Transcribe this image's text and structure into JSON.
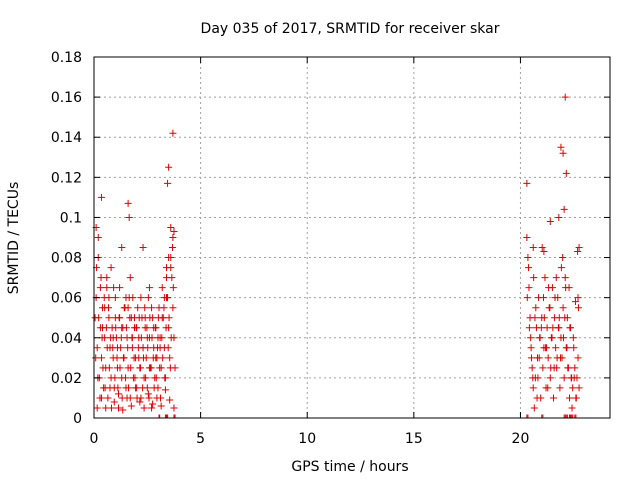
{
  "chart_data": {
    "type": "scatter",
    "title": "Day 035 of 2017, SRMTID for receiver skar",
    "xlabel": "GPS time / hours",
    "ylabel": "SRMTID / TECUs",
    "xlim": [
      0,
      24.2
    ],
    "ylim": [
      0,
      0.18
    ],
    "x_ticks": [
      0,
      5,
      10,
      15,
      20
    ],
    "y_ticks": [
      0,
      0.02,
      0.04,
      0.06,
      0.08,
      0.1,
      0.12,
      0.14,
      0.16,
      0.18
    ],
    "x_tick_labels": [
      "0",
      "5",
      "10",
      "15",
      "20"
    ],
    "y_tick_labels": [
      "0",
      "0.02",
      "0.04",
      "0.06",
      "0.08",
      "0.1",
      "0.12",
      "0.14",
      "0.16",
      "0.18"
    ],
    "grid": true,
    "marker": "+",
    "color": "#e00000",
    "series": [
      {
        "x": [
          0.05,
          0.1,
          0.15,
          0.2,
          0.25,
          0.3,
          0.35,
          0.4,
          0.45,
          0.5,
          0.55,
          0.6,
          0.65,
          0.7,
          0.75,
          0.8,
          0.85,
          0.9,
          0.95,
          1.0,
          1.05,
          1.1,
          1.15,
          1.2,
          1.25,
          1.3,
          1.35,
          1.4,
          1.45,
          1.5,
          1.55,
          1.6,
          1.65,
          1.7,
          1.75,
          1.8,
          1.85,
          1.9,
          1.95,
          2.0,
          2.05,
          2.1,
          2.15,
          2.2,
          2.25,
          2.3,
          2.35,
          2.4,
          2.45,
          2.5,
          2.55,
          2.6,
          2.65,
          2.7,
          2.75,
          2.8,
          2.85,
          2.9,
          2.95,
          3.0,
          3.05,
          3.1,
          3.15,
          3.2,
          3.25,
          3.3,
          3.35,
          3.4,
          3.45,
          3.5,
          3.55,
          3.6,
          3.65,
          3.7,
          3.75,
          3.8,
          0.08,
          0.12,
          0.18,
          0.22,
          0.28,
          0.33,
          0.38,
          0.42,
          0.48,
          0.52,
          0.58,
          0.62,
          0.68,
          0.72,
          0.78,
          0.82,
          0.88,
          0.92,
          0.98,
          1.02,
          1.08,
          1.12,
          1.18,
          1.22,
          1.28,
          1.32,
          1.38,
          1.42,
          1.48,
          1.52,
          1.58,
          1.62,
          1.68,
          1.72,
          1.78,
          1.82,
          1.88,
          1.92,
          1.98,
          2.02,
          2.08,
          2.12,
          2.18,
          2.22,
          2.28,
          2.32,
          2.38,
          2.42,
          2.48,
          2.52,
          2.58,
          2.62,
          2.68,
          2.72,
          2.78,
          2.82,
          2.88,
          2.92,
          2.98,
          3.02,
          3.08,
          3.12,
          3.18,
          3.22,
          3.28,
          3.32,
          3.38,
          3.42,
          3.48,
          3.52,
          3.58,
          3.62,
          3.68,
          3.72,
          0.1,
          0.2,
          0.3,
          0.4,
          0.5,
          0.6,
          0.7,
          0.8,
          0.9,
          1.0,
          1.1,
          1.2,
          1.3,
          1.4,
          1.5,
          1.6,
          1.7,
          1.8,
          1.9,
          2.0,
          2.1,
          2.2,
          2.3,
          2.4,
          2.5,
          2.6,
          2.7,
          2.8,
          2.9,
          3.0,
          3.1,
          3.2,
          3.3,
          3.4,
          3.5,
          3.6,
          3.7,
          0.15,
          0.35,
          0.55,
          0.75,
          0.95,
          1.15,
          1.35,
          1.55,
          1.75,
          1.95,
          2.15,
          2.35,
          2.55,
          2.75,
          2.95,
          3.15,
          3.35,
          3.55,
          3.75,
          0.35,
          1.6,
          1.65,
          3.45,
          3.5,
          3.7,
          1.3,
          2.3,
          2.6,
          3.4,
          3.6,
          3.75,
          20.3,
          20.35,
          20.4,
          20.45,
          20.5,
          20.55,
          20.6,
          20.65,
          20.7,
          20.75,
          20.8,
          20.85,
          20.9,
          20.95,
          21.0,
          21.05,
          21.1,
          21.15,
          21.2,
          21.25,
          21.3,
          21.35,
          21.4,
          21.45,
          21.5,
          21.55,
          21.6,
          21.65,
          21.7,
          21.75,
          21.8,
          21.85,
          21.9,
          21.95,
          22.0,
          22.05,
          22.1,
          22.15,
          22.2,
          22.25,
          22.3,
          22.35,
          22.4,
          22.45,
          22.5,
          22.55,
          22.6,
          22.65,
          22.7,
          22.75,
          20.32,
          20.42,
          20.52,
          20.62,
          20.72,
          20.82,
          20.92,
          21.02,
          21.12,
          21.22,
          21.32,
          21.42,
          21.52,
          21.62,
          21.72,
          21.82,
          21.92,
          22.02,
          22.12,
          22.22,
          22.32,
          22.42,
          22.52,
          22.62,
          22.72,
          20.38,
          20.48,
          20.58,
          20.68,
          20.78,
          20.88,
          20.98,
          21.08,
          21.18,
          21.28,
          21.38,
          21.48,
          21.58,
          21.68,
          21.78,
          21.88,
          21.98,
          22.08,
          22.18,
          22.28,
          22.38,
          22.48,
          22.58,
          22.68,
          20.3,
          22.1,
          21.8,
          21.9,
          22.0,
          22.05,
          22.15,
          22.75,
          22.7,
          20.6,
          21.1,
          21.4
        ],
        "y": [
          0.05,
          0.06,
          0.035,
          0.09,
          0.02,
          0.045,
          0.03,
          0.055,
          0.015,
          0.04,
          0.025,
          0.065,
          0.01,
          0.05,
          0.035,
          0.02,
          0.045,
          0.03,
          0.015,
          0.06,
          0.04,
          0.025,
          0.005,
          0.05,
          0.035,
          0.02,
          0.045,
          0.03,
          0.055,
          0.015,
          0.04,
          0.025,
          0.06,
          0.01,
          0.05,
          0.035,
          0.02,
          0.045,
          0.03,
          0.015,
          0.055,
          0.04,
          0.025,
          0.01,
          0.05,
          0.035,
          0.02,
          0.045,
          0.03,
          0.015,
          0.06,
          0.04,
          0.025,
          0.005,
          0.05,
          0.035,
          0.02,
          0.045,
          0.03,
          0.015,
          0.055,
          0.04,
          0.025,
          0.065,
          0.05,
          0.035,
          0.02,
          0.075,
          0.06,
          0.045,
          0.03,
          0.08,
          0.07,
          0.055,
          0.04,
          0.025,
          0.03,
          0.075,
          0.02,
          0.05,
          0.01,
          0.07,
          0.04,
          0.025,
          0.06,
          0.015,
          0.045,
          0.035,
          0.055,
          0.025,
          0.04,
          0.005,
          0.035,
          0.065,
          0.02,
          0.045,
          0.03,
          0.015,
          0.05,
          0.025,
          0.04,
          0.01,
          0.03,
          0.055,
          0.02,
          0.045,
          0.035,
          0.015,
          0.05,
          0.025,
          0.04,
          0.06,
          0.03,
          0.02,
          0.045,
          0.01,
          0.035,
          0.05,
          0.025,
          0.04,
          0.015,
          0.03,
          0.055,
          0.02,
          0.045,
          0.035,
          0.01,
          0.05,
          0.025,
          0.04,
          0.03,
          0.015,
          0.045,
          0.02,
          0.035,
          0.05,
          0.025,
          0.01,
          0.04,
          0.03,
          0.055,
          0.02,
          0.045,
          0.06,
          0.035,
          0.05,
          0.025,
          0.04,
          0.085,
          0.065,
          0.095,
          0.08,
          0.065,
          0.045,
          0.055,
          0.07,
          0.06,
          0.075,
          0.04,
          0.05,
          0.035,
          0.065,
          0.045,
          0.03,
          0.06,
          0.055,
          0.07,
          0.04,
          0.05,
          0.045,
          0.03,
          0.06,
          0.035,
          0.05,
          0.04,
          0.025,
          0.055,
          0.045,
          0.03,
          0.04,
          0.035,
          0.05,
          0.06,
          0.07,
          0.08,
          0.075,
          0.09,
          0.005,
          0.01,
          0.005,
          0.015,
          0.008,
          0.012,
          0.004,
          0.01,
          0.006,
          0.015,
          0.008,
          0.005,
          0.012,
          0.007,
          0.01,
          0.006,
          0.014,
          0.009,
          0.005,
          0.11,
          0.107,
          0.1,
          0.117,
          0.125,
          0.142,
          0.085,
          0.085,
          0.065,
          0.06,
          0.095,
          0.093,
          0.09,
          0.08,
          0.065,
          0.05,
          0.035,
          0.025,
          0.015,
          0.005,
          0.02,
          0.045,
          0.03,
          0.06,
          0.04,
          0.01,
          0.05,
          0.025,
          0.035,
          0.07,
          0.015,
          0.045,
          0.03,
          0.055,
          0.02,
          0.04,
          0.065,
          0.01,
          0.05,
          0.035,
          0.025,
          0.06,
          0.045,
          0.015,
          0.04,
          0.03,
          0.055,
          0.02,
          0.07,
          0.035,
          0.05,
          0.025,
          0.01,
          0.045,
          0.02,
          0.015,
          0.035,
          0.025,
          0.01,
          0.02,
          0.03,
          0.015,
          0.06,
          0.045,
          0.03,
          0.07,
          0.055,
          0.02,
          0.04,
          0.085,
          0.05,
          0.035,
          0.065,
          0.025,
          0.045,
          0.06,
          0.03,
          0.05,
          0.075,
          0.04,
          0.065,
          0.025,
          0.045,
          0.005,
          0.02,
          0.01,
          0.055,
          0.075,
          0.04,
          0.02,
          0.05,
          0.01,
          0.03,
          0.045,
          0.06,
          0.035,
          0.015,
          0.055,
          0.04,
          0.025,
          0.07,
          0.045,
          0.03,
          0.08,
          0.05,
          0.035,
          0.065,
          0.02,
          0.04,
          0.058,
          0.083,
          0.117,
          0.16,
          0.1,
          0.135,
          0.132,
          0.104,
          0.122,
          0.085,
          0.06,
          0.085,
          0.083,
          0.098
        ],
        "zero_x": [
          3.05,
          3.08,
          3.35,
          3.4,
          3.45,
          3.75,
          3.8,
          20.3,
          20.35,
          21.0,
          21.05,
          22.05,
          22.1,
          22.15,
          22.2,
          22.3,
          22.35,
          22.4,
          22.45,
          22.55,
          22.6
        ]
      }
    ]
  }
}
